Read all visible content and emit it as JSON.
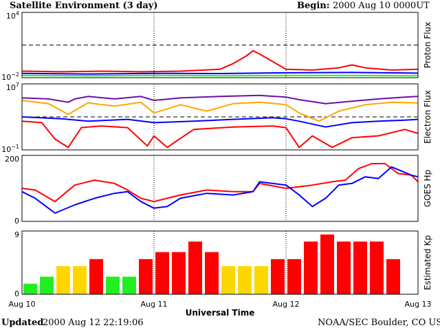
{
  "header": {
    "title": "Satellite Environment (3 day)",
    "begin_label": "Begin:",
    "begin_value": "2000 Aug 10 0000UT"
  },
  "footer": {
    "updated_label": "Updated",
    "updated_value": "2000 Aug 12 22:19:06",
    "credit": "NOAA/SEC Boulder, CO USA"
  },
  "x_axis": {
    "label": "Universal Time",
    "ticks": [
      "Aug 10",
      "Aug 11",
      "Aug 12",
      "Aug 13"
    ]
  },
  "colors": {
    "red": "#ff0000",
    "blue": "#0000ff",
    "green": "#22ee22",
    "purple": "#6a0dad",
    "orange": "#ffa500",
    "kp_yellow": "#ffd700"
  },
  "chart_data": [
    {
      "type": "line",
      "ylabel": "Proton Flux",
      "yscale": "log",
      "ylim": [
        0.01,
        10000
      ],
      "ytick_labels": [
        "10^4",
        "10^-2"
      ],
      "threshold": 10,
      "x_unit": "days since Aug 10 00UT",
      "series": [
        {
          "color": "red",
          "x": [
            0,
            0.3,
            0.6,
            0.9,
            1.2,
            1.5,
            1.6,
            1.7,
            1.75,
            1.8,
            1.9,
            2.0,
            2.2,
            2.4,
            2.5,
            2.6,
            2.8,
            3.0
          ],
          "y": [
            0.04,
            0.035,
            0.04,
            0.035,
            0.04,
            0.06,
            0.2,
            1.0,
            3.0,
            1.5,
            0.3,
            0.06,
            0.05,
            0.08,
            0.15,
            0.08,
            0.05,
            0.06
          ]
        },
        {
          "color": "blue",
          "x": [
            0,
            0.5,
            1.0,
            1.5,
            2.0,
            2.5,
            3.0
          ],
          "y": [
            0.025,
            0.022,
            0.025,
            0.024,
            0.028,
            0.03,
            0.026
          ]
        },
        {
          "color": "green",
          "x": [
            0,
            0.5,
            1.0,
            1.5,
            2.0,
            2.5,
            3.0
          ],
          "y": [
            0.016,
            0.015,
            0.016,
            0.015,
            0.016,
            0.016,
            0.015
          ]
        }
      ]
    },
    {
      "type": "line",
      "ylabel": "Electron Flux",
      "yscale": "log",
      "ylim": [
        0.1,
        10000000
      ],
      "ytick_labels": [
        "10^7",
        "10^-1"
      ],
      "threshold": 1000,
      "series": [
        {
          "color": "purple",
          "x": [
            0,
            0.2,
            0.35,
            0.4,
            0.5,
            0.7,
            0.9,
            1.0,
            1.2,
            1.5,
            1.8,
            2.0,
            2.1,
            2.3,
            2.5,
            2.7,
            2.9,
            3.0
          ],
          "y": [
            200000,
            150000,
            60000,
            150000,
            300000,
            150000,
            300000,
            100000,
            200000,
            300000,
            400000,
            250000,
            120000,
            40000,
            80000,
            150000,
            250000,
            300000
          ]
        },
        {
          "color": "orange",
          "x": [
            0,
            0.2,
            0.35,
            0.5,
            0.7,
            0.9,
            1.0,
            1.2,
            1.4,
            1.6,
            1.8,
            2.0,
            2.1,
            2.25,
            2.4,
            2.6,
            2.8,
            3.0
          ],
          "y": [
            100000,
            40000,
            2000,
            50000,
            20000,
            60000,
            3000,
            30000,
            5000,
            40000,
            60000,
            30000,
            3000,
            300,
            5000,
            30000,
            60000,
            50000
          ]
        },
        {
          "color": "blue",
          "x": [
            0,
            0.3,
            0.5,
            0.8,
            1.0,
            1.3,
            1.6,
            1.9,
            2.0,
            2.1,
            2.3,
            2.5,
            2.7,
            2.9,
            3.0
          ],
          "y": [
            1000,
            600,
            300,
            500,
            200,
            300,
            500,
            800,
            600,
            300,
            60,
            200,
            300,
            400,
            500
          ]
        },
        {
          "color": "red",
          "x": [
            0,
            0.15,
            0.25,
            0.35,
            0.45,
            0.6,
            0.8,
            0.95,
            1.0,
            1.1,
            1.3,
            1.6,
            1.9,
            2.0,
            2.1,
            2.2,
            2.35,
            2.5,
            2.7,
            2.9,
            3.0
          ],
          "y": [
            300,
            200,
            2,
            0.2,
            50,
            80,
            50,
            0.3,
            5,
            0.2,
            30,
            60,
            80,
            50,
            0.2,
            5,
            0.2,
            3,
            5,
            30,
            10
          ]
        }
      ]
    },
    {
      "type": "line",
      "ylabel": "GOES Hp",
      "ylim": [
        0,
        200
      ],
      "ytick_labels": [
        "200",
        "0"
      ],
      "series": [
        {
          "color": "red",
          "x": [
            0,
            0.1,
            0.25,
            0.4,
            0.55,
            0.7,
            0.8,
            0.9,
            1.0,
            1.2,
            1.4,
            1.6,
            1.75,
            1.8,
            2.0,
            2.2,
            2.35,
            2.45,
            2.55,
            2.65,
            2.75,
            2.85,
            2.95,
            3.0
          ],
          "y": [
            100,
            95,
            60,
            110,
            125,
            115,
            95,
            70,
            60,
            80,
            95,
            90,
            90,
            115,
            100,
            110,
            120,
            125,
            160,
            175,
            175,
            145,
            140,
            120
          ]
        },
        {
          "color": "blue",
          "x": [
            0,
            0.1,
            0.2,
            0.25,
            0.4,
            0.55,
            0.7,
            0.8,
            0.9,
            1.0,
            1.1,
            1.2,
            1.4,
            1.6,
            1.75,
            1.8,
            2.0,
            2.1,
            2.2,
            2.3,
            2.4,
            2.5,
            2.6,
            2.7,
            2.8,
            2.95,
            3.0
          ],
          "y": [
            90,
            70,
            40,
            25,
            50,
            70,
            85,
            90,
            60,
            40,
            45,
            70,
            85,
            80,
            90,
            120,
            110,
            80,
            45,
            70,
            110,
            115,
            135,
            130,
            165,
            140,
            135
          ]
        }
      ]
    },
    {
      "type": "bar",
      "ylabel": "Estimated Kp",
      "ylim": [
        0,
        9
      ],
      "ytick_labels": [
        "9",
        "0"
      ],
      "values": [
        1.5,
        2.5,
        4,
        4,
        5,
        2.5,
        2.5,
        5,
        6,
        6,
        7.5,
        6,
        4,
        4,
        4,
        5,
        5,
        7.5,
        8.5,
        7.5,
        7.5,
        7.5,
        5
      ],
      "colors": [
        "green",
        "green",
        "kp_yellow",
        "kp_yellow",
        "red",
        "green",
        "green",
        "red",
        "red",
        "red",
        "red",
        "red",
        "kp_yellow",
        "kp_yellow",
        "kp_yellow",
        "red",
        "red",
        "red",
        "red",
        "red",
        "red",
        "red",
        "red"
      ]
    }
  ]
}
